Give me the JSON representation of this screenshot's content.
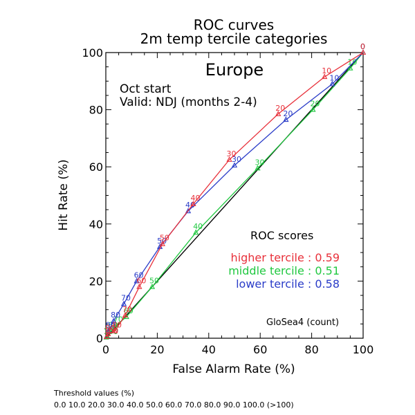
{
  "title": "ROC curves",
  "subtitle": "2m temp tercile categories",
  "region": "Europe",
  "info_line1": "Oct start",
  "info_line2": "Valid: NDJ (months 2-4)",
  "scores_title": "ROC scores",
  "footer_label": "Threshold values (%)",
  "footer_values": "0.0 10.0 20.0 30.0 40.0 50.0 60.0 70.0 80.0 90.0 100.0 (>100)",
  "model_label": "GloSea4 (count)",
  "chart_data": {
    "type": "line",
    "xlabel": "False Alarm Rate (%)",
    "ylabel": "Hit Rate (%)",
    "xlim": [
      0,
      100
    ],
    "ylim": [
      0,
      100
    ],
    "x_ticks": [
      0,
      20,
      40,
      60,
      80,
      100
    ],
    "y_ticks": [
      0,
      20,
      40,
      60,
      80,
      100
    ],
    "grid": false,
    "diagonal": true,
    "series": [
      {
        "name": "higher tercile",
        "score_text": "higher tercile : 0.59",
        "color": "#e8303a",
        "points": [
          {
            "label": "100",
            "x": 0.3,
            "y": 0.5
          },
          {
            "label": "90",
            "x": 0.9,
            "y": 1.5
          },
          {
            "label": "80",
            "x": 3.5,
            "y": 2.5
          },
          {
            "label": "70",
            "x": 7.5,
            "y": 8
          },
          {
            "label": "60",
            "x": 13,
            "y": 18
          },
          {
            "label": "50",
            "x": 22,
            "y": 33
          },
          {
            "label": "40",
            "x": 34,
            "y": 47
          },
          {
            "label": "30",
            "x": 48,
            "y": 62.5
          },
          {
            "label": "20",
            "x": 67,
            "y": 78.5
          },
          {
            "label": "10",
            "x": 85,
            "y": 91.5
          },
          {
            "label": "0",
            "x": 100,
            "y": 100
          }
        ]
      },
      {
        "name": "middle tercile",
        "score_text": "middle tercile : 0.51",
        "color": "#20c840",
        "points": [
          {
            "label": "100",
            "x": 0.2,
            "y": 0.3
          },
          {
            "label": "90",
            "x": 0.5,
            "y": 0.8
          },
          {
            "label": "80",
            "x": 2,
            "y": 2.5
          },
          {
            "label": "70",
            "x": 4,
            "y": 4.5
          },
          {
            "label": "60",
            "x": 8,
            "y": 7.5
          },
          {
            "label": "50",
            "x": 18,
            "y": 18
          },
          {
            "label": "40",
            "x": 35,
            "y": 37
          },
          {
            "label": "30",
            "x": 59,
            "y": 59.5
          },
          {
            "label": "20",
            "x": 80.5,
            "y": 80
          },
          {
            "label": "10",
            "x": 95,
            "y": 94.5
          },
          {
            "label": "0",
            "x": 100,
            "y": 100
          }
        ]
      },
      {
        "name": "lower tercile",
        "score_text": "lower tercile : 0.58",
        "color": "#2a3cc8",
        "points": [
          {
            "label": "100",
            "x": 0.3,
            "y": 0.5
          },
          {
            "label": "90",
            "x": 1,
            "y": 2.5
          },
          {
            "label": "80",
            "x": 3,
            "y": 6
          },
          {
            "label": "70",
            "x": 7,
            "y": 12
          },
          {
            "label": "60",
            "x": 12,
            "y": 20
          },
          {
            "label": "50",
            "x": 21,
            "y": 32
          },
          {
            "label": "40",
            "x": 32,
            "y": 44.5
          },
          {
            "label": "30",
            "x": 50,
            "y": 60.5
          },
          {
            "label": "20",
            "x": 70,
            "y": 76.5
          },
          {
            "label": "10",
            "x": 88,
            "y": 89
          },
          {
            "label": "0",
            "x": 100,
            "y": 100
          }
        ]
      }
    ]
  }
}
